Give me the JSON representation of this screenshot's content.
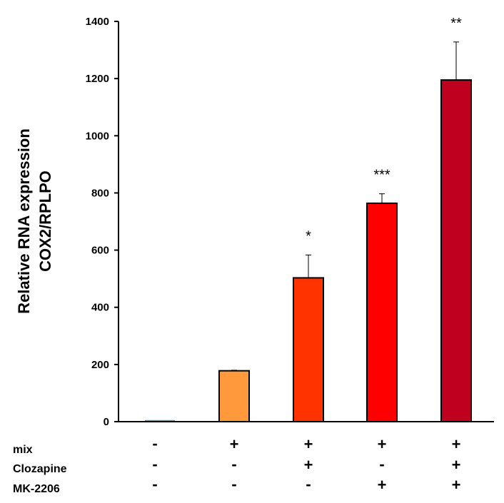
{
  "chart_data": {
    "type": "bar",
    "title": "",
    "ylabel": [
      "Relative RNA expression",
      "COX2/RPLPO"
    ],
    "xlabel": "",
    "ylim": [
      0,
      1400
    ],
    "yticks": [
      0,
      200,
      400,
      600,
      800,
      1000,
      1200,
      1400
    ],
    "grid": false,
    "values": [
      3,
      178,
      503,
      764,
      1195
    ],
    "error_upper": [
      0,
      2,
      80,
      33,
      133
    ],
    "significance": [
      "",
      "",
      "*",
      "***",
      "**"
    ],
    "colors": [
      "#1ba1e2",
      "#ff9a3c",
      "#ff3300",
      "#ff0000",
      "#c0001f"
    ],
    "conditions": [
      {
        "label": "mix",
        "signs": [
          "-",
          "+",
          "+",
          "+",
          "+"
        ]
      },
      {
        "label": "Clozapine",
        "signs": [
          "-",
          "-",
          "+",
          "-",
          "+"
        ]
      },
      {
        "label": "MK-2206",
        "signs": [
          "-",
          "-",
          "-",
          "+",
          "+"
        ]
      }
    ]
  }
}
